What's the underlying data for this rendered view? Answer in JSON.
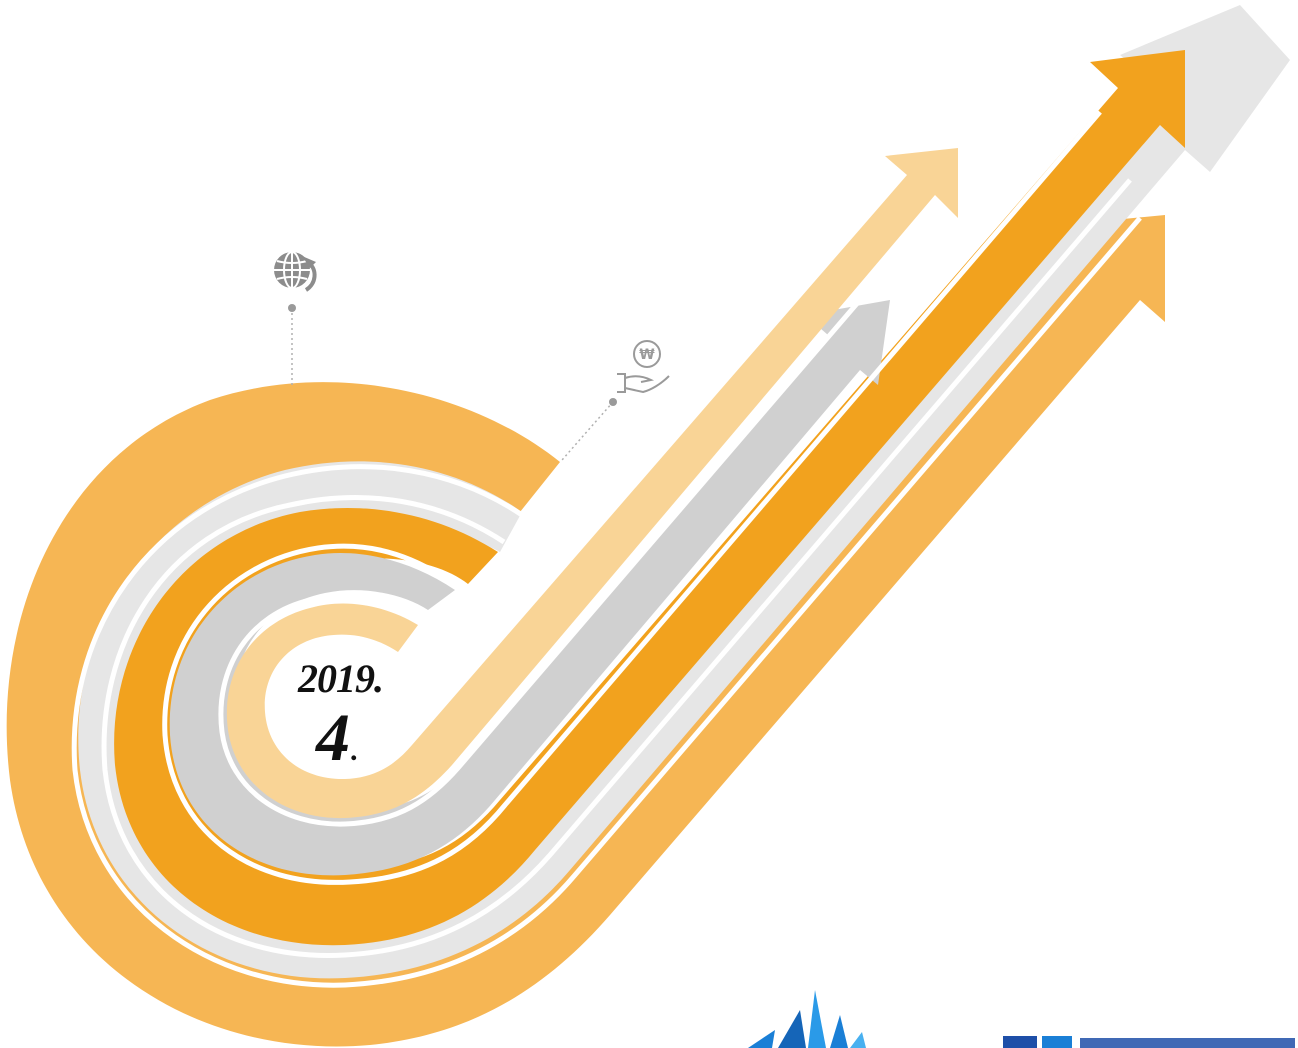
{
  "cover": {
    "date_year": "2019.",
    "date_month": "4",
    "date_month_dot": "."
  },
  "icons": {
    "globe": "globe-refresh-icon",
    "money_hand": "won-coin-hand-icon"
  },
  "colors": {
    "orange_dark": "#F2A21E",
    "orange_mid": "#F6B654",
    "orange_light": "#F9D496",
    "gray_light": "#E6E6E6",
    "gray_mid": "#D0D0D0",
    "icon_gray": "#8C8C8C",
    "logo_blue": "#1A7FD6"
  }
}
